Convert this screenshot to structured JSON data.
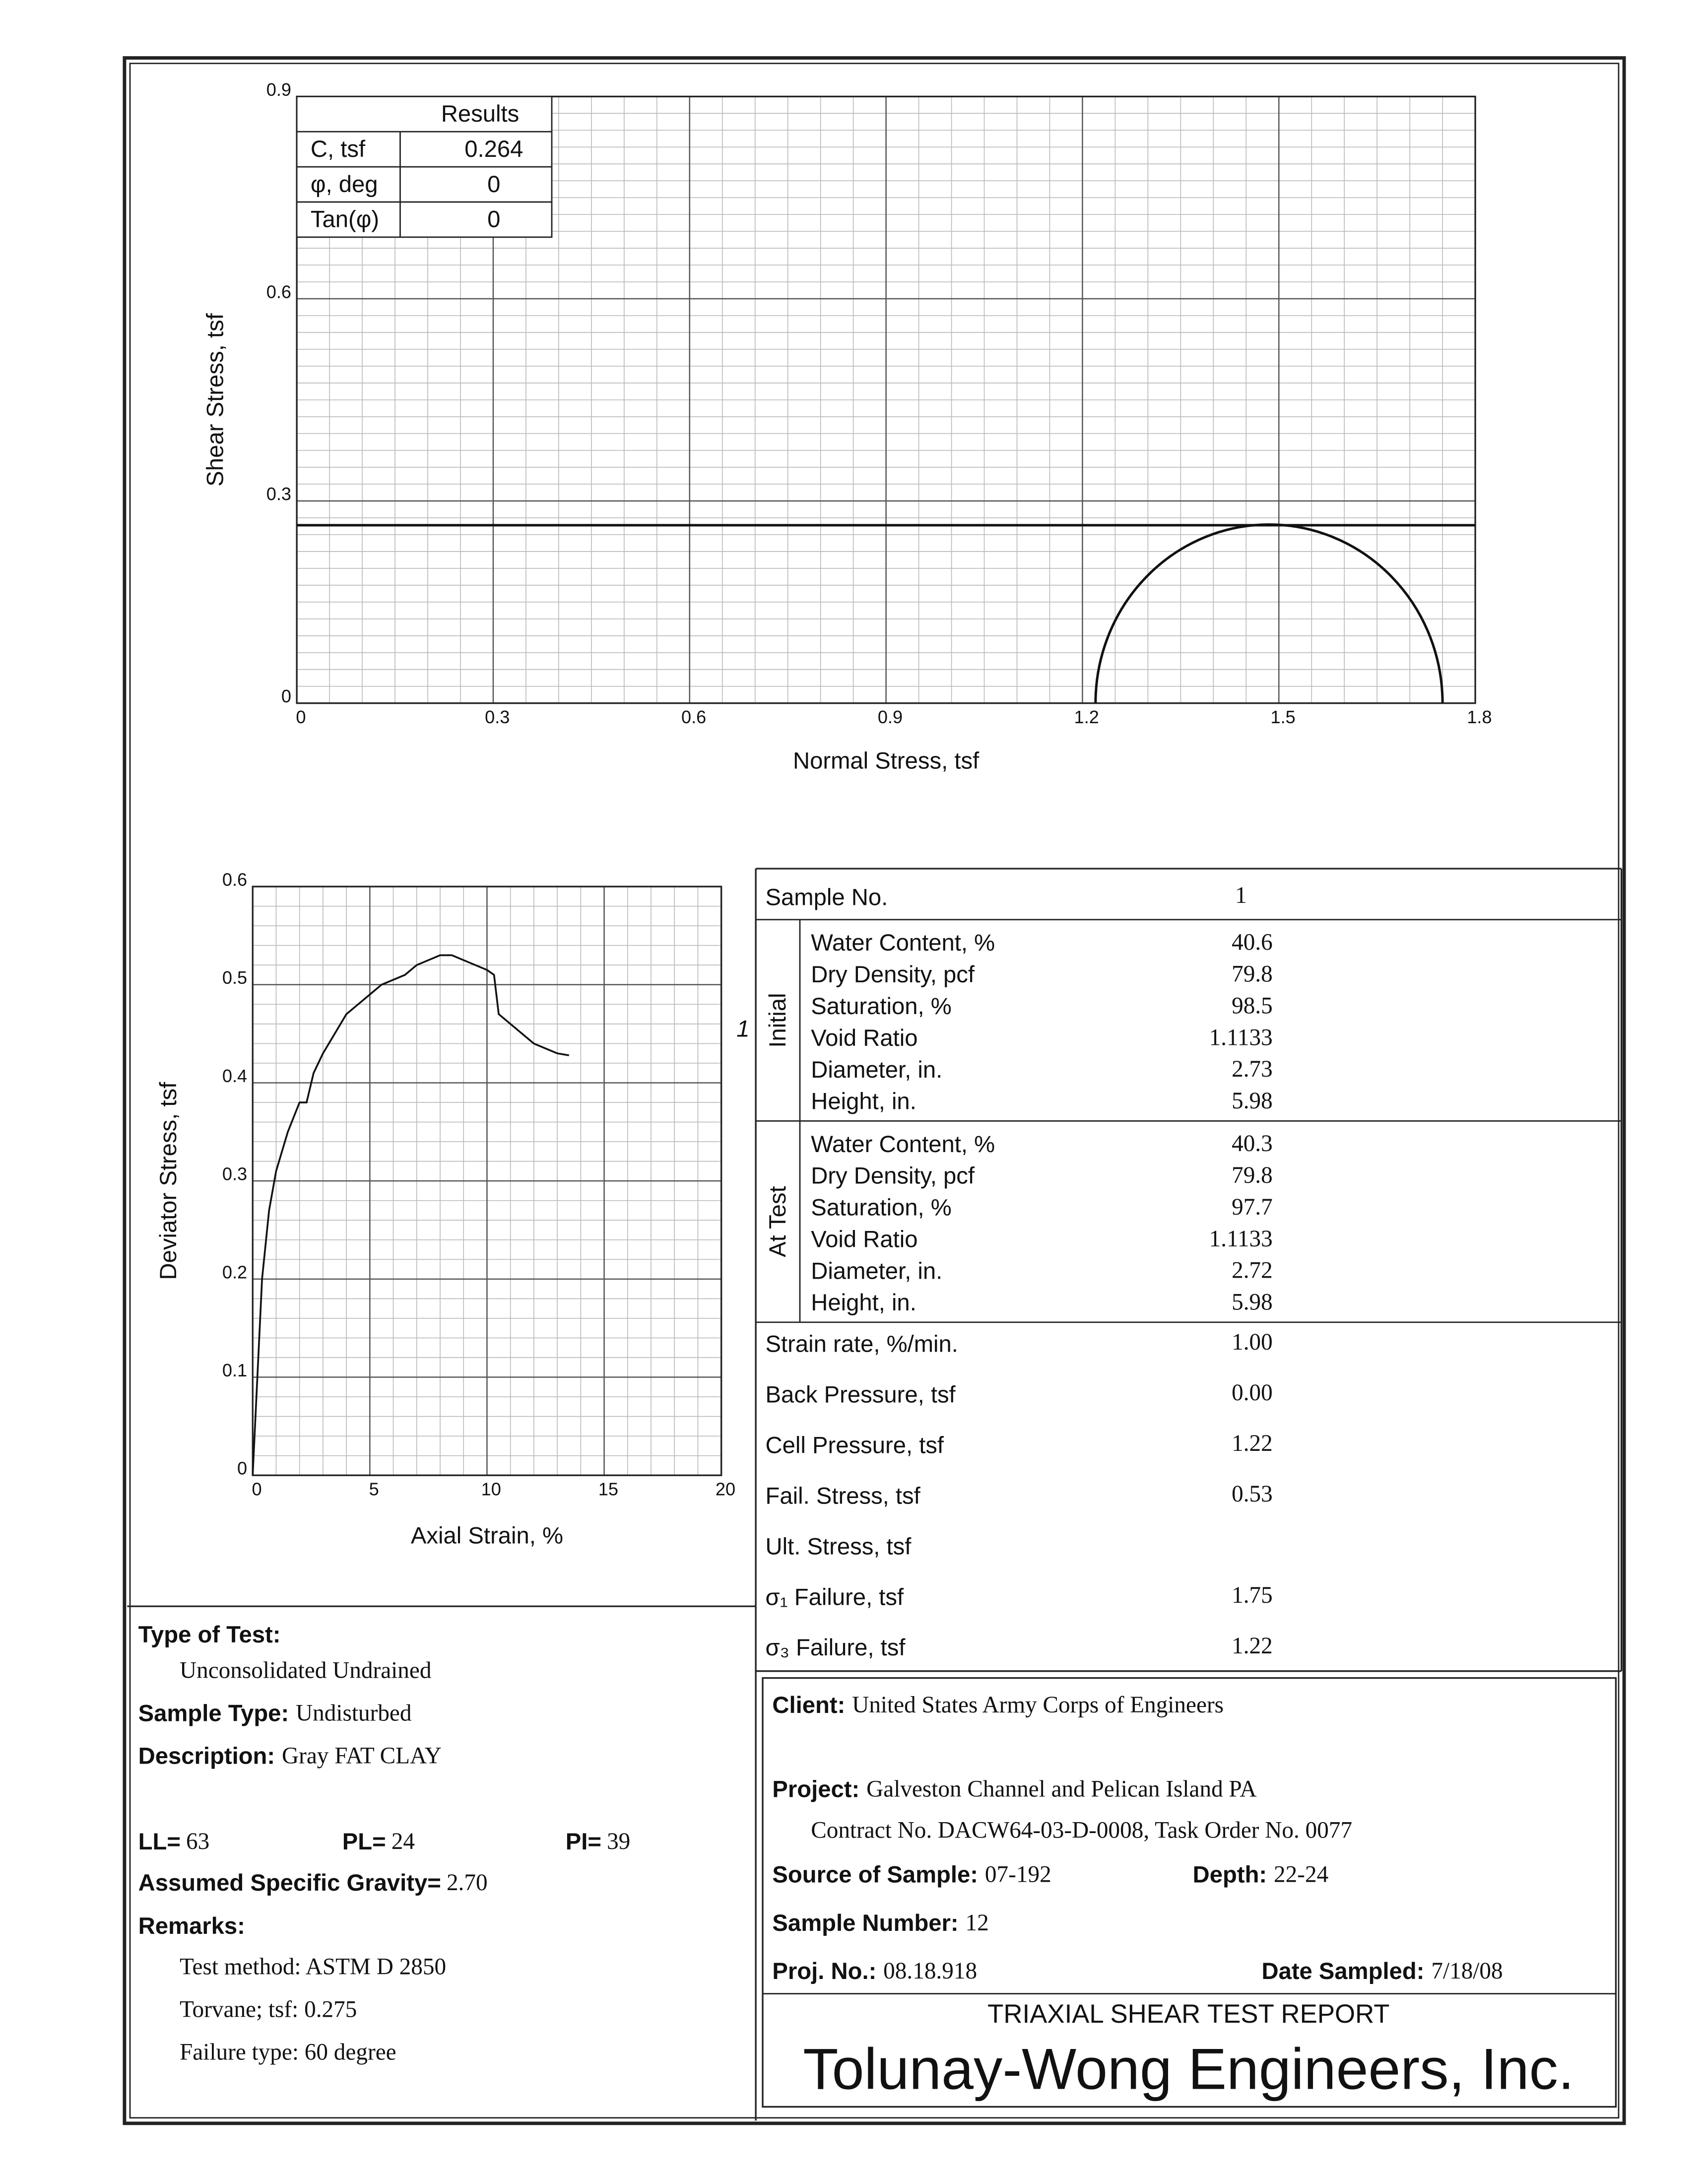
{
  "chart_data": [
    {
      "type": "mohr",
      "xlabel": "Normal Stress, tsf",
      "ylabel": "Shear Stress, tsf",
      "xlim": [
        0,
        1.8
      ],
      "ylim": [
        0,
        0.9
      ],
      "xticks": [
        0,
        0.3,
        0.6,
        0.9,
        1.2,
        1.5,
        1.8
      ],
      "yticks": [
        0,
        0.3,
        0.6,
        0.9
      ],
      "grid": true,
      "color": "#111",
      "circles": [
        {
          "sigma3": 1.22,
          "sigma1": 1.75
        }
      ],
      "results": {
        "header": "Results",
        "rows": [
          {
            "label": "C, tsf",
            "value": 0.264
          },
          {
            "label": "φ, deg",
            "value": 0
          },
          {
            "label": "Tan(φ)",
            "value": 0
          }
        ]
      }
    },
    {
      "type": "line",
      "xlabel": "Axial Strain, %",
      "ylabel": "Deviator Stress, tsf",
      "xlim": [
        0,
        20
      ],
      "ylim": [
        0,
        0.6
      ],
      "xticks": [
        0,
        5,
        10,
        15,
        20
      ],
      "yticks": [
        0,
        0.1,
        0.2,
        0.3,
        0.4,
        0.5,
        0.6
      ],
      "grid": true,
      "x": [
        0,
        0.2,
        0.4,
        0.7,
        1,
        1.5,
        2,
        2.3,
        2.6,
        3,
        3.5,
        4,
        4.5,
        5,
        5.5,
        6,
        6.5,
        7,
        7.5,
        8,
        8.5,
        9,
        9.5,
        10,
        10.3,
        10.5,
        11,
        11.5,
        12,
        12.5,
        13,
        13.5
      ],
      "series": [
        {
          "name": "1",
          "color": "#111",
          "values": [
            0,
            0.1,
            0.2,
            0.27,
            0.31,
            0.35,
            0.38,
            0.38,
            0.41,
            0.43,
            0.45,
            0.47,
            0.48,
            0.49,
            0.5,
            0.505,
            0.51,
            0.52,
            0.525,
            0.53,
            0.53,
            0.525,
            0.52,
            0.515,
            0.51,
            0.47,
            0.46,
            0.45,
            0.44,
            0.435,
            0.43,
            0.428
          ]
        }
      ]
    }
  ],
  "sample_table": {
    "sample_no": {
      "label": "Sample No.",
      "value": "1"
    },
    "groups": [
      {
        "name": "Initial",
        "rows": [
          {
            "label": "Water Content, %",
            "value": "40.6"
          },
          {
            "label": "Dry Density, pcf",
            "value": "79.8"
          },
          {
            "label": "Saturation, %",
            "value": "98.5"
          },
          {
            "label": "Void Ratio",
            "value": "1.1133"
          },
          {
            "label": "Diameter, in.",
            "value": "2.73"
          },
          {
            "label": "Height, in.",
            "value": "5.98"
          }
        ]
      },
      {
        "name": "At Test",
        "rows": [
          {
            "label": "Water Content, %",
            "value": "40.3"
          },
          {
            "label": "Dry Density, pcf",
            "value": "79.8"
          },
          {
            "label": "Saturation, %",
            "value": "97.7"
          },
          {
            "label": "Void Ratio",
            "value": "1.1133"
          },
          {
            "label": "Diameter, in.",
            "value": "2.72"
          },
          {
            "label": "Height, in.",
            "value": "5.98"
          }
        ]
      }
    ],
    "rows": [
      {
        "label": "Strain rate, %/min.",
        "value": "1.00"
      },
      {
        "label": "Back Pressure, tsf",
        "value": "0.00"
      },
      {
        "label": "Cell Pressure, tsf",
        "value": "1.22"
      },
      {
        "label": "Fail. Stress, tsf",
        "value": "0.53"
      },
      {
        "label": "Ult. Stress, tsf"
      },
      {
        "label": "σ₁ Failure, tsf",
        "value": "1.75"
      },
      {
        "label": "σ₃ Failure, tsf",
        "value": "1.22"
      }
    ]
  },
  "left": {
    "type_of_test": {
      "label": "Type of Test:",
      "value": "Unconsolidated Undrained"
    },
    "sample_type": {
      "label": "Sample Type:",
      "value": "Undisturbed"
    },
    "description": {
      "label": "Description:",
      "value": "Gray FAT CLAY"
    },
    "ll": {
      "label": "LL=",
      "value": "63"
    },
    "pl": {
      "label": "PL=",
      "value": "24"
    },
    "pi": {
      "label": "PI=",
      "value": "39"
    },
    "gravity": {
      "label": "Assumed Specific Gravity=",
      "value": "2.70"
    },
    "remarks": {
      "label": "Remarks:",
      "lines": [
        "Test method: ASTM D 2850",
        "Torvane; tsf: 0.275",
        "Failure type: 60 degree"
      ]
    }
  },
  "info": {
    "client": {
      "label": "Client:",
      "value": "United States Army Corps of Engineers"
    },
    "project": {
      "label": "Project:",
      "value": "Galveston Channel and Pelican Island PA"
    },
    "contract": "Contract No. DACW64-03-D-0008, Task Order No. 0077",
    "source": {
      "label": "Source of Sample:",
      "value": "07-192"
    },
    "depth": {
      "label": "Depth:",
      "value": "22-24"
    },
    "sample_number": {
      "label": "Sample Number:",
      "value": "12"
    },
    "proj_no": {
      "label": "Proj. No.:",
      "value": "08.18.918"
    },
    "date_sampled": {
      "label": "Date Sampled:",
      "value": "7/18/08"
    },
    "report_title": "TRIAXIAL SHEAR TEST REPORT",
    "company": "Tolunay-Wong Engineers, Inc."
  }
}
